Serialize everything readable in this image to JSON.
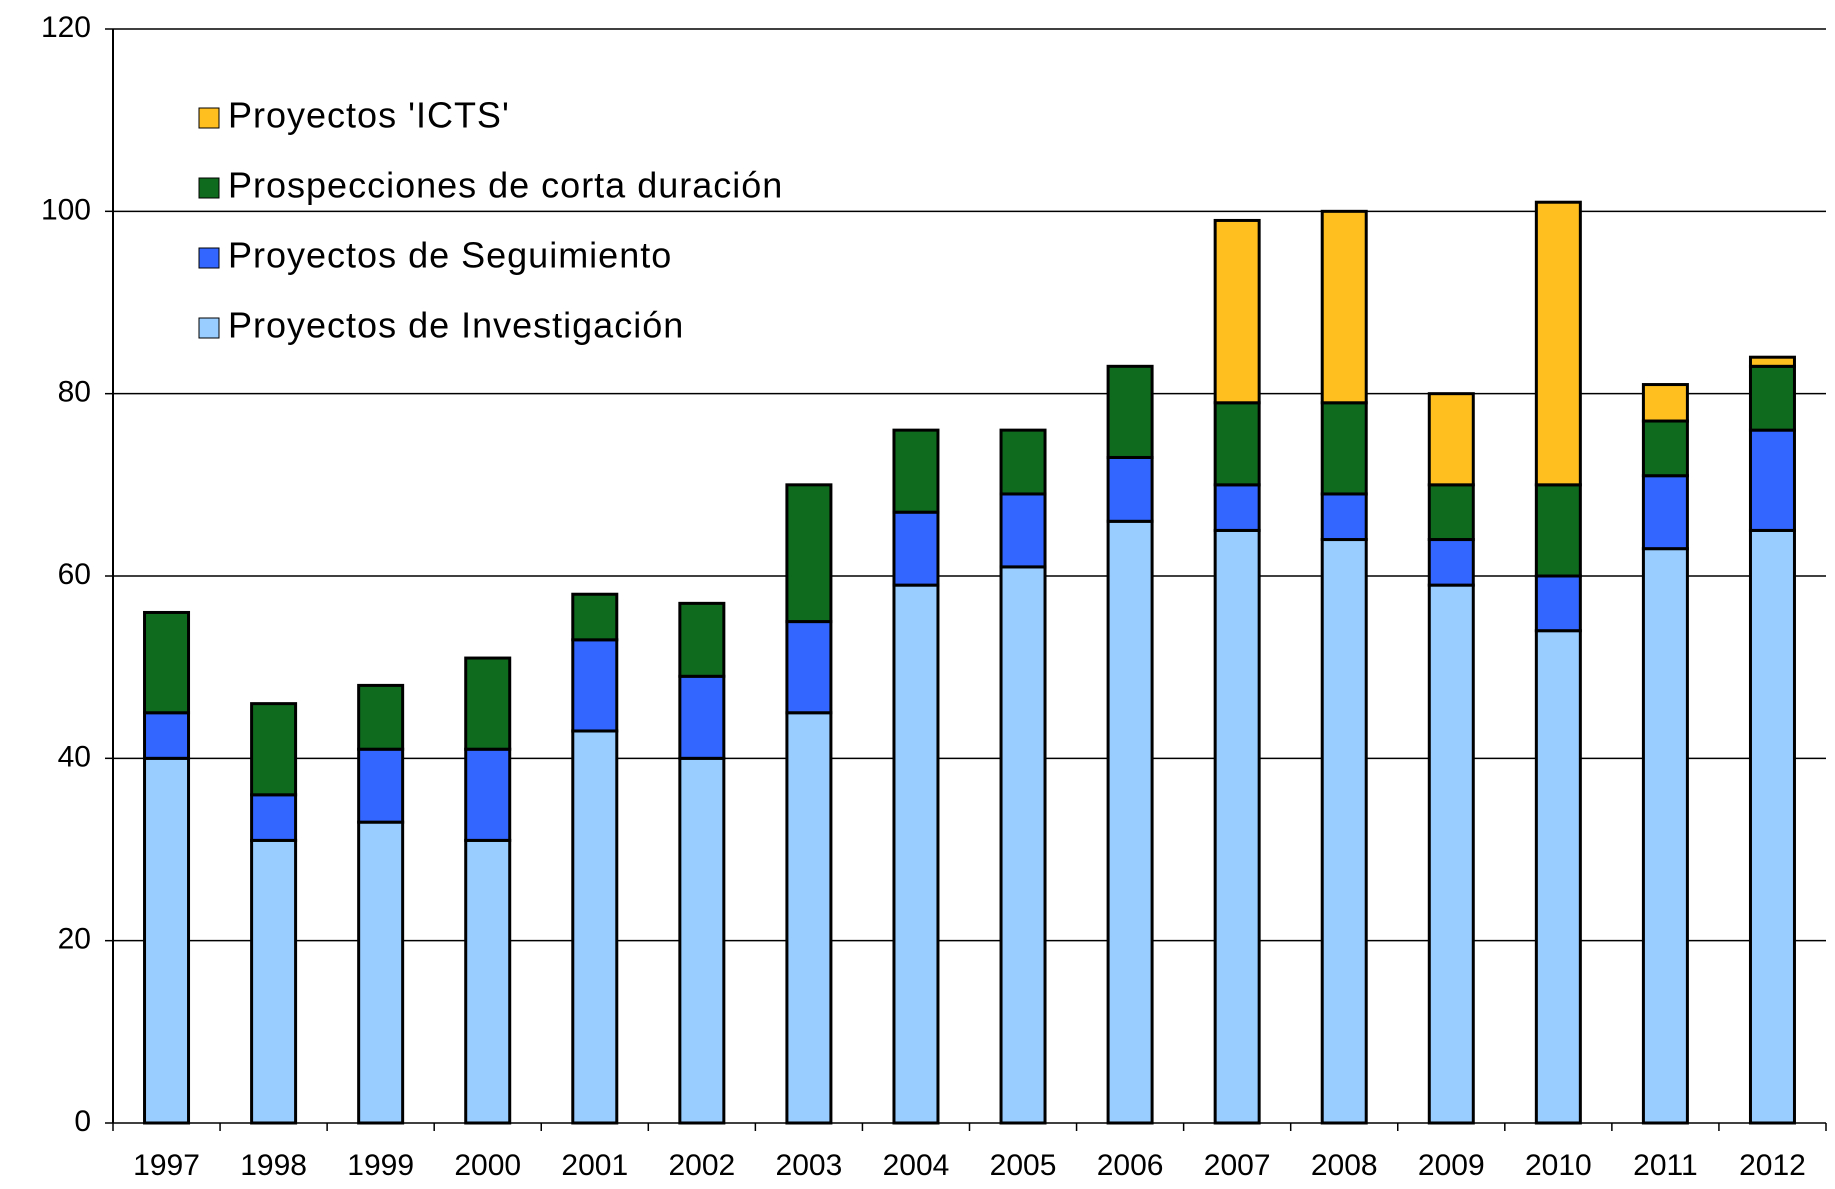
{
  "chart_data": {
    "type": "stacked-bar",
    "categories": [
      "1997",
      "1998",
      "1999",
      "2000",
      "2001",
      "2002",
      "2003",
      "2004",
      "2005",
      "2006",
      "2007",
      "2008",
      "2009",
      "2010",
      "2011",
      "2012"
    ],
    "series": [
      {
        "name": "Proyectos de Investigación",
        "color": "#99ccff",
        "values": [
          40,
          31,
          33,
          31,
          43,
          40,
          45,
          59,
          61,
          66,
          65,
          64,
          59,
          54,
          63,
          65
        ]
      },
      {
        "name": "Proyectos de Seguimiento",
        "color": "#3366ff",
        "values": [
          5,
          5,
          8,
          10,
          10,
          9,
          10,
          8,
          8,
          7,
          5,
          5,
          5,
          6,
          8,
          11
        ]
      },
      {
        "name": "Prospecciones de corta duración",
        "color": "#0f6b1e",
        "values": [
          11,
          10,
          7,
          10,
          5,
          8,
          15,
          9,
          7,
          10,
          9,
          10,
          6,
          10,
          6,
          7
        ]
      },
      {
        "name": "Proyectos 'ICTS'",
        "color": "#ffbf1f",
        "values": [
          0,
          0,
          0,
          0,
          0,
          0,
          0,
          0,
          0,
          0,
          20,
          21,
          10,
          31,
          4,
          1
        ]
      }
    ],
    "ylim": [
      0,
      120
    ],
    "yticks": [
      0,
      20,
      40,
      60,
      80,
      100,
      120
    ],
    "grid": true,
    "legend": "top-left"
  }
}
